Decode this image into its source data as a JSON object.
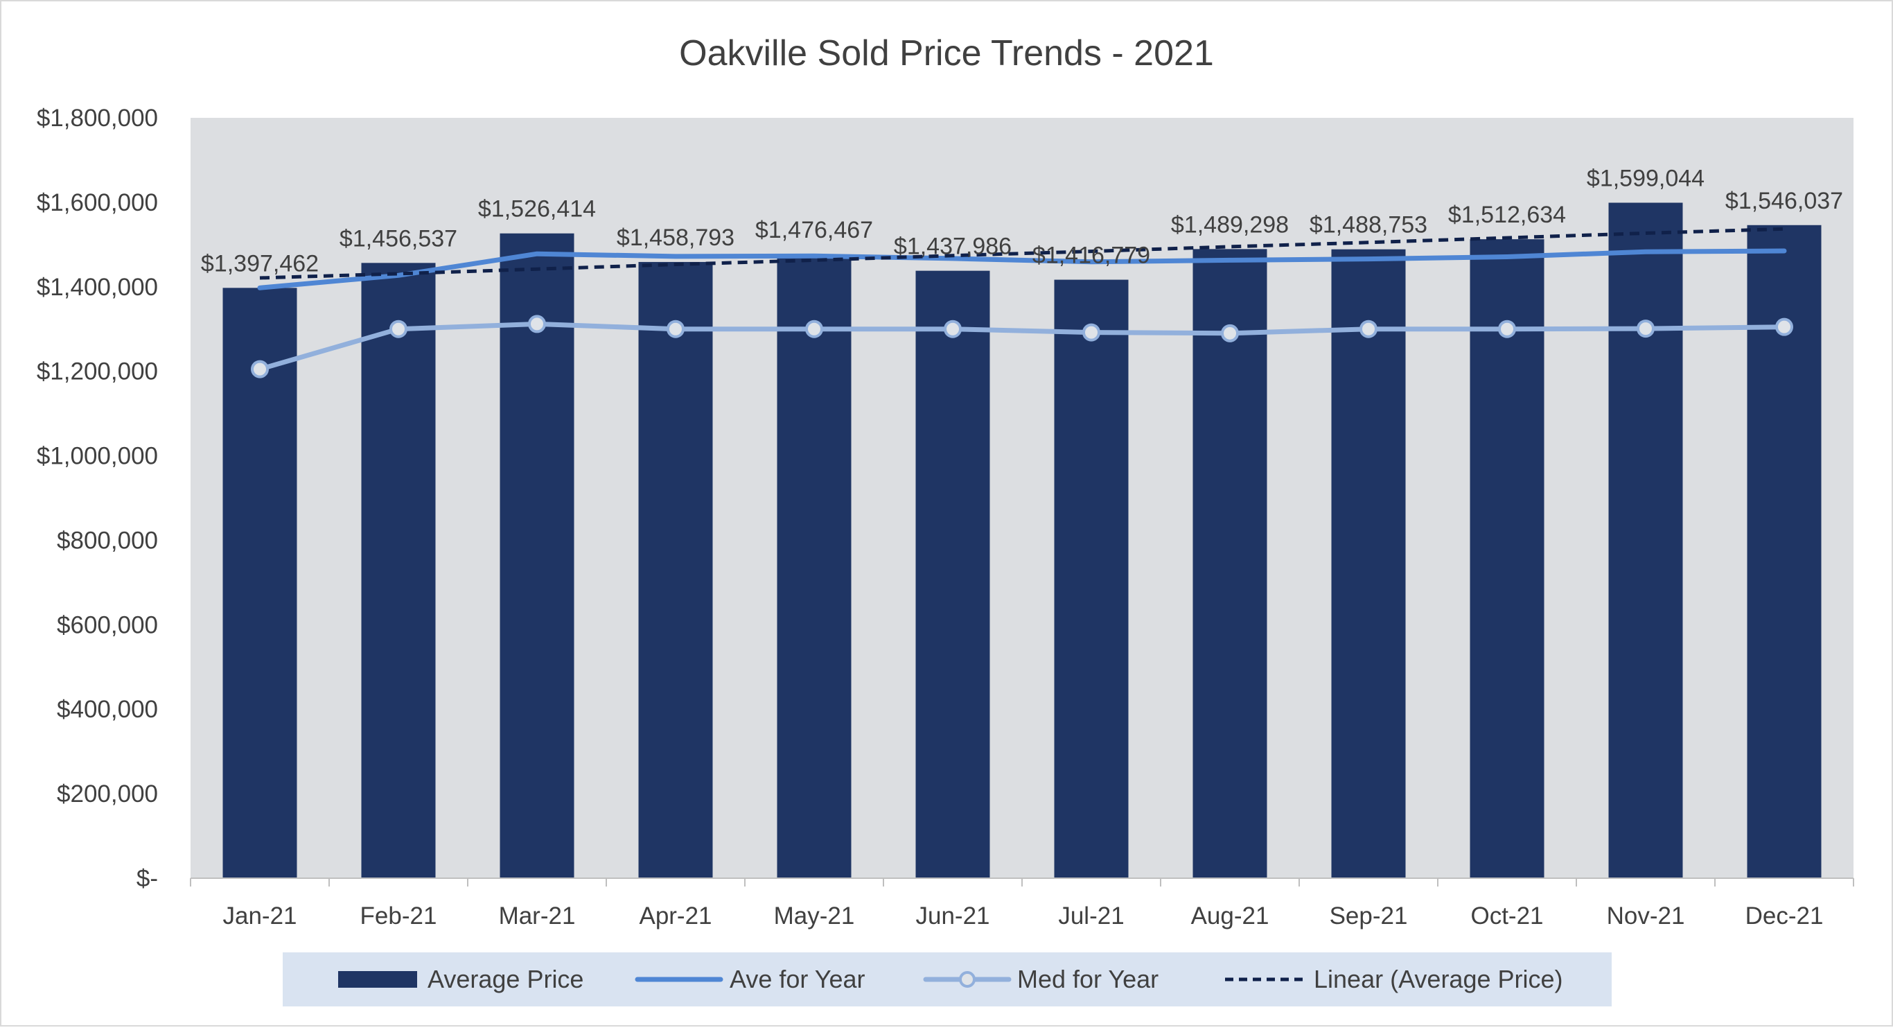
{
  "chart_data": {
    "type": "bar",
    "title": "Oakville Sold Price Trends - 2021",
    "categories": [
      "Jan-21",
      "Feb-21",
      "Mar-21",
      "Apr-21",
      "May-21",
      "Jun-21",
      "Jul-21",
      "Aug-21",
      "Sep-21",
      "Oct-21",
      "Nov-21",
      "Dec-21"
    ],
    "series": [
      {
        "name": "Average Price",
        "kind": "bar",
        "color": "#1f3564",
        "values": [
          1397462,
          1456537,
          1526414,
          1458793,
          1476467,
          1437986,
          1416779,
          1489298,
          1488753,
          1512634,
          1599044,
          1546037
        ],
        "labels": [
          "$1,397,462",
          "$1,456,537",
          "$1,526,414",
          "$1,458,793",
          "$1,476,467",
          "$1,437,986",
          "$1,416,779",
          "$1,489,298",
          "$1,488,753",
          "$1,512,634",
          "$1,599,044",
          "$1,546,037"
        ]
      },
      {
        "name": "Ave for Year",
        "kind": "line",
        "color": "#4f86d4",
        "values": [
          1397462,
          1427000,
          1478000,
          1472000,
          1473000,
          1467000,
          1459000,
          1463000,
          1466000,
          1471000,
          1483000,
          1485000
        ]
      },
      {
        "name": "Med for Year",
        "kind": "line-markers",
        "color": "#92b0dc",
        "values": [
          1205000,
          1300000,
          1312000,
          1300000,
          1300000,
          1300000,
          1292000,
          1290000,
          1300000,
          1300000,
          1301000,
          1305000
        ]
      },
      {
        "name": "Linear (Average Price)",
        "kind": "trendline",
        "color": "#10214a",
        "values": [
          1421000,
          1431000,
          1442000,
          1453000,
          1463000,
          1474000,
          1484000,
          1495000,
          1505000,
          1516000,
          1527000,
          1537000
        ]
      }
    ],
    "yticks": [
      "$-",
      "$200,000",
      "$400,000",
      "$600,000",
      "$800,000",
      "$1,000,000",
      "$1,200,000",
      "$1,400,000",
      "$1,600,000",
      "$1,800,000"
    ],
    "ylim": [
      0,
      1800000
    ],
    "xlabel": "",
    "ylabel": "",
    "grid": false,
    "plot_background": "#dcdee1",
    "legend_background": "#d9e3f1",
    "legend_position": "bottom"
  }
}
